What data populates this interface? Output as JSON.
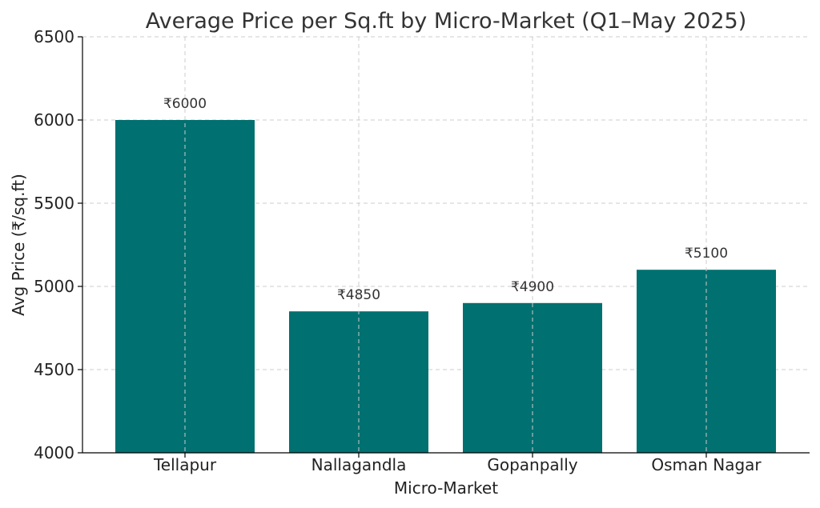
{
  "chart_data": {
    "type": "bar",
    "title": "Average Price per Sq.ft by Micro-Market (Q1–May 2025)",
    "xlabel": "Micro-Market",
    "ylabel": "Avg Price (₹/sq.ft)",
    "categories": [
      "Tellapur",
      "Nallagandla",
      "Gopanpally",
      "Osman Nagar"
    ],
    "values": [
      6000,
      4850,
      4900,
      5100
    ],
    "data_labels": [
      "₹6000",
      "₹4850",
      "₹4900",
      "₹5100"
    ],
    "ylim": [
      4000,
      6500
    ],
    "yticks": [
      "4000",
      "4500",
      "5000",
      "5500",
      "6000",
      "6500"
    ],
    "grid": true,
    "bar_color": "#007070"
  }
}
